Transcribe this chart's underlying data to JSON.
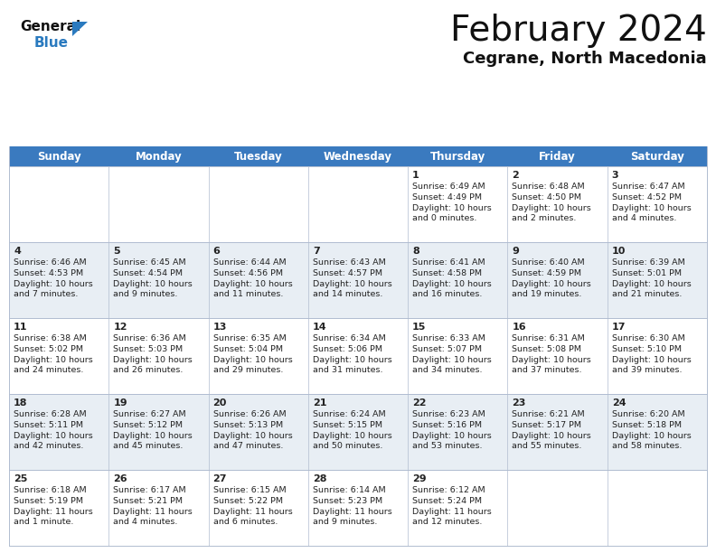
{
  "title": "February 2024",
  "subtitle": "Cegrane, North Macedonia",
  "header_bg": "#3a7abf",
  "header_text_color": "#ffffff",
  "cell_bg_odd": "#ffffff",
  "cell_bg_even": "#e8eef4",
  "border_color": "#b0bcd0",
  "text_color": "#222222",
  "days_of_week": [
    "Sunday",
    "Monday",
    "Tuesday",
    "Wednesday",
    "Thursday",
    "Friday",
    "Saturday"
  ],
  "logo_general_color": "#111111",
  "logo_blue_color": "#2a7abf",
  "logo_triangle_color": "#2a7abf",
  "title_fontsize": 28,
  "subtitle_fontsize": 13,
  "header_fontsize": 8.5,
  "day_num_fontsize": 8,
  "cell_text_fontsize": 6.8,
  "calendar_data": [
    [
      {
        "day": "",
        "sunrise": "",
        "sunset": "",
        "daylight": ""
      },
      {
        "day": "",
        "sunrise": "",
        "sunset": "",
        "daylight": ""
      },
      {
        "day": "",
        "sunrise": "",
        "sunset": "",
        "daylight": ""
      },
      {
        "day": "",
        "sunrise": "",
        "sunset": "",
        "daylight": ""
      },
      {
        "day": "1",
        "sunrise": "6:49 AM",
        "sunset": "4:49 PM",
        "daylight": "10 hours\nand 0 minutes."
      },
      {
        "day": "2",
        "sunrise": "6:48 AM",
        "sunset": "4:50 PM",
        "daylight": "10 hours\nand 2 minutes."
      },
      {
        "day": "3",
        "sunrise": "6:47 AM",
        "sunset": "4:52 PM",
        "daylight": "10 hours\nand 4 minutes."
      }
    ],
    [
      {
        "day": "4",
        "sunrise": "6:46 AM",
        "sunset": "4:53 PM",
        "daylight": "10 hours\nand 7 minutes."
      },
      {
        "day": "5",
        "sunrise": "6:45 AM",
        "sunset": "4:54 PM",
        "daylight": "10 hours\nand 9 minutes."
      },
      {
        "day": "6",
        "sunrise": "6:44 AM",
        "sunset": "4:56 PM",
        "daylight": "10 hours\nand 11 minutes."
      },
      {
        "day": "7",
        "sunrise": "6:43 AM",
        "sunset": "4:57 PM",
        "daylight": "10 hours\nand 14 minutes."
      },
      {
        "day": "8",
        "sunrise": "6:41 AM",
        "sunset": "4:58 PM",
        "daylight": "10 hours\nand 16 minutes."
      },
      {
        "day": "9",
        "sunrise": "6:40 AM",
        "sunset": "4:59 PM",
        "daylight": "10 hours\nand 19 minutes."
      },
      {
        "day": "10",
        "sunrise": "6:39 AM",
        "sunset": "5:01 PM",
        "daylight": "10 hours\nand 21 minutes."
      }
    ],
    [
      {
        "day": "11",
        "sunrise": "6:38 AM",
        "sunset": "5:02 PM",
        "daylight": "10 hours\nand 24 minutes."
      },
      {
        "day": "12",
        "sunrise": "6:36 AM",
        "sunset": "5:03 PM",
        "daylight": "10 hours\nand 26 minutes."
      },
      {
        "day": "13",
        "sunrise": "6:35 AM",
        "sunset": "5:04 PM",
        "daylight": "10 hours\nand 29 minutes."
      },
      {
        "day": "14",
        "sunrise": "6:34 AM",
        "sunset": "5:06 PM",
        "daylight": "10 hours\nand 31 minutes."
      },
      {
        "day": "15",
        "sunrise": "6:33 AM",
        "sunset": "5:07 PM",
        "daylight": "10 hours\nand 34 minutes."
      },
      {
        "day": "16",
        "sunrise": "6:31 AM",
        "sunset": "5:08 PM",
        "daylight": "10 hours\nand 37 minutes."
      },
      {
        "day": "17",
        "sunrise": "6:30 AM",
        "sunset": "5:10 PM",
        "daylight": "10 hours\nand 39 minutes."
      }
    ],
    [
      {
        "day": "18",
        "sunrise": "6:28 AM",
        "sunset": "5:11 PM",
        "daylight": "10 hours\nand 42 minutes."
      },
      {
        "day": "19",
        "sunrise": "6:27 AM",
        "sunset": "5:12 PM",
        "daylight": "10 hours\nand 45 minutes."
      },
      {
        "day": "20",
        "sunrise": "6:26 AM",
        "sunset": "5:13 PM",
        "daylight": "10 hours\nand 47 minutes."
      },
      {
        "day": "21",
        "sunrise": "6:24 AM",
        "sunset": "5:15 PM",
        "daylight": "10 hours\nand 50 minutes."
      },
      {
        "day": "22",
        "sunrise": "6:23 AM",
        "sunset": "5:16 PM",
        "daylight": "10 hours\nand 53 minutes."
      },
      {
        "day": "23",
        "sunrise": "6:21 AM",
        "sunset": "5:17 PM",
        "daylight": "10 hours\nand 55 minutes."
      },
      {
        "day": "24",
        "sunrise": "6:20 AM",
        "sunset": "5:18 PM",
        "daylight": "10 hours\nand 58 minutes."
      }
    ],
    [
      {
        "day": "25",
        "sunrise": "6:18 AM",
        "sunset": "5:19 PM",
        "daylight": "11 hours\nand 1 minute."
      },
      {
        "day": "26",
        "sunrise": "6:17 AM",
        "sunset": "5:21 PM",
        "daylight": "11 hours\nand 4 minutes."
      },
      {
        "day": "27",
        "sunrise": "6:15 AM",
        "sunset": "5:22 PM",
        "daylight": "11 hours\nand 6 minutes."
      },
      {
        "day": "28",
        "sunrise": "6:14 AM",
        "sunset": "5:23 PM",
        "daylight": "11 hours\nand 9 minutes."
      },
      {
        "day": "29",
        "sunrise": "6:12 AM",
        "sunset": "5:24 PM",
        "daylight": "11 hours\nand 12 minutes."
      },
      {
        "day": "",
        "sunrise": "",
        "sunset": "",
        "daylight": ""
      },
      {
        "day": "",
        "sunrise": "",
        "sunset": "",
        "daylight": ""
      }
    ]
  ]
}
